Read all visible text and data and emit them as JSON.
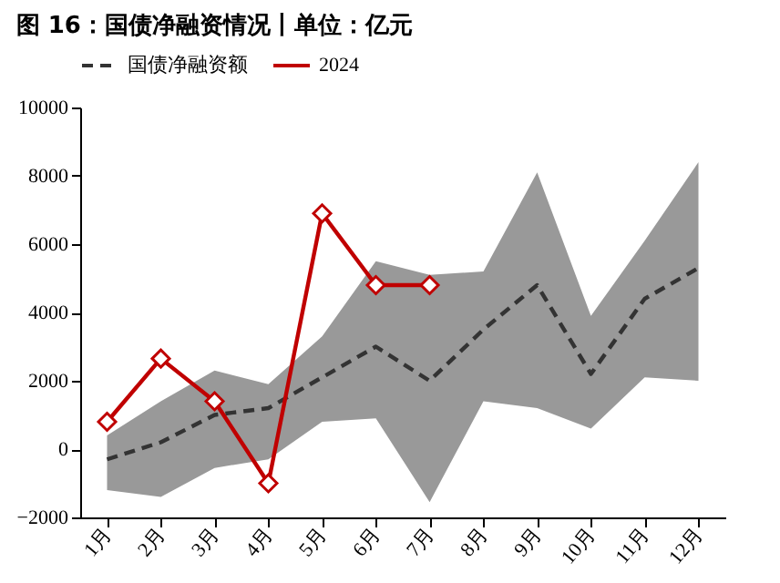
{
  "chart_data": {
    "type": "line",
    "title": "图 16：国债净融资情况丨单位：亿元",
    "categories": [
      "1月",
      "2月",
      "3月",
      "4月",
      "5月",
      "6月",
      "7月",
      "8月",
      "9月",
      "10月",
      "11月",
      "12月"
    ],
    "series": [
      {
        "name": "国债净融资额",
        "color": "#333333",
        "line_style": "dashed",
        "marker": "none",
        "values": [
          -300,
          200,
          1000,
          1200,
          2100,
          3000,
          2000,
          3500,
          4800,
          2200,
          4400,
          5300
        ],
        "lower": [
          -1200,
          -1400,
          -550,
          -300,
          800,
          900,
          -1550,
          1400,
          1200,
          600,
          2100,
          2000
        ],
        "upper": [
          400,
          1400,
          2300,
          1900,
          3300,
          5500,
          5100,
          5200,
          8100,
          3900,
          6100,
          8400
        ]
      },
      {
        "name": "2024",
        "color": "#c00000",
        "line_style": "solid",
        "marker": "diamond",
        "values": [
          800,
          2650,
          1400,
          -1000,
          6900,
          4800,
          4800,
          null,
          null,
          null,
          null,
          null
        ]
      }
    ],
    "ylim": [
      -2000,
      10000
    ],
    "yticks": [
      -2000,
      0,
      2000,
      4000,
      6000,
      8000,
      10000
    ],
    "grid": false,
    "legend": "top"
  }
}
